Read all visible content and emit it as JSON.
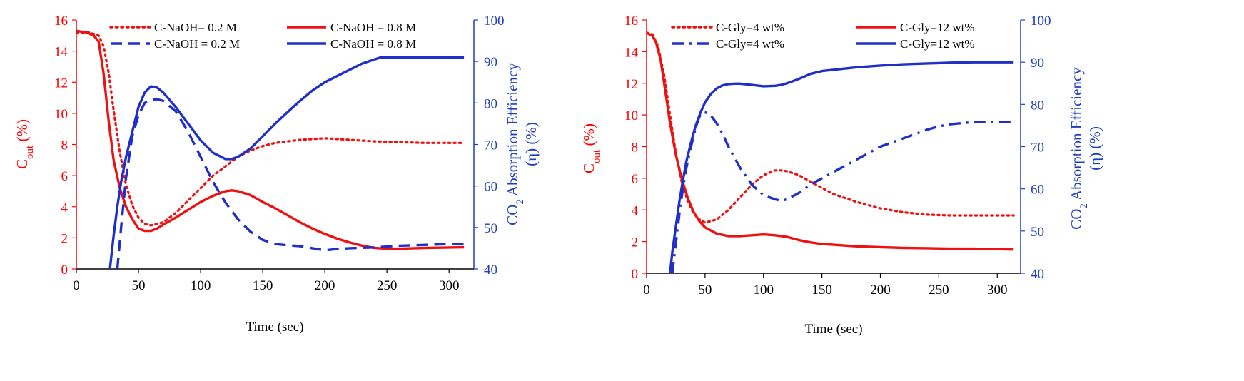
{
  "colors": {
    "left_axis": "#ff0000",
    "right_axis": "#1f3fbf",
    "red_series": "#ee1111",
    "blue_series": "#1f2fc8"
  },
  "chart_data": [
    {
      "type": "line",
      "xlabel": "Time  (sec)",
      "ylabel_left": {
        "main": "C",
        "sub": "out",
        "tail": "  (%)"
      },
      "ylabel_right": {
        "line1": {
          "pre": "CO",
          "sub": "2",
          "post": " Absorption  Efficiency"
        },
        "line2": "(η) (%)"
      },
      "xlim": [
        0,
        320
      ],
      "ylim_left": [
        0,
        16
      ],
      "ylim_right": [
        40,
        100
      ],
      "xticks": [
        "0",
        "50",
        "100",
        "150",
        "200",
        "250",
        "300"
      ],
      "yticks_left": [
        "0",
        "2",
        "4",
        "6",
        "8",
        "10",
        "12",
        "14",
        "16"
      ],
      "yticks_right": [
        "40",
        "50",
        "60",
        "70",
        "80",
        "90",
        "100"
      ],
      "series": [
        {
          "name": "C-NaOH= 0.2 M",
          "axis": "left",
          "color": "red",
          "dash": "dotted",
          "x": [
            0,
            10,
            18,
            22,
            26,
            30,
            35,
            40,
            45,
            50,
            55,
            60,
            70,
            80,
            90,
            100,
            110,
            120,
            130,
            140,
            150,
            160,
            180,
            200,
            220,
            240,
            260,
            280,
            300,
            312
          ],
          "y": [
            15.2,
            15.2,
            15.0,
            14.3,
            12.6,
            10.2,
            7.5,
            5.4,
            4.1,
            3.3,
            2.9,
            2.8,
            3.0,
            3.6,
            4.4,
            5.2,
            6.0,
            6.6,
            7.2,
            7.6,
            7.9,
            8.1,
            8.3,
            8.4,
            8.3,
            8.2,
            8.15,
            8.1,
            8.1,
            8.1
          ]
        },
        {
          "name": "C-NaOH = 0.8 M",
          "axis": "left",
          "color": "red",
          "dash": "solid",
          "x": [
            0,
            8,
            14,
            18,
            22,
            26,
            30,
            35,
            40,
            45,
            50,
            55,
            60,
            65,
            70,
            80,
            90,
            100,
            110,
            120,
            125,
            130,
            140,
            150,
            160,
            170,
            180,
            190,
            200,
            210,
            220,
            230,
            240,
            250,
            260,
            280,
            300,
            312
          ],
          "y": [
            15.3,
            15.2,
            15.0,
            14.6,
            12.5,
            9.5,
            7.0,
            5.2,
            4.0,
            3.2,
            2.6,
            2.45,
            2.45,
            2.6,
            2.85,
            3.3,
            3.8,
            4.3,
            4.7,
            5.0,
            5.05,
            5.0,
            4.75,
            4.3,
            3.9,
            3.45,
            3.0,
            2.6,
            2.25,
            1.95,
            1.7,
            1.5,
            1.35,
            1.3,
            1.3,
            1.35,
            1.38,
            1.4
          ]
        },
        {
          "name": "C-NaOH = 0.2 M",
          "axis": "right",
          "color": "blue",
          "dash": "dashed",
          "x": [
            33,
            36,
            40,
            45,
            50,
            55,
            60,
            65,
            70,
            80,
            90,
            100,
            110,
            120,
            130,
            140,
            150,
            160,
            170,
            180,
            190,
            200,
            210,
            220,
            240,
            260,
            280,
            300,
            312
          ],
          "y": [
            40,
            50,
            62,
            72,
            77,
            80,
            80.7,
            80.9,
            80.5,
            78,
            73,
            67,
            61,
            56,
            52,
            49,
            47,
            46,
            45.7,
            45.5,
            45,
            44.5,
            44.8,
            45,
            45.2,
            45.6,
            45.8,
            46,
            46
          ]
        },
        {
          "name": "C-NaOH = 0.8 M",
          "axis": "right",
          "color": "blue",
          "dash": "solid",
          "x": [
            27,
            30,
            33,
            36,
            40,
            45,
            50,
            55,
            60,
            65,
            70,
            80,
            90,
            100,
            110,
            120,
            125,
            130,
            140,
            150,
            160,
            170,
            180,
            190,
            200,
            210,
            220,
            230,
            240,
            245,
            250,
            260,
            280,
            300,
            312
          ],
          "y": [
            40,
            48,
            55,
            61,
            67,
            73,
            79,
            82.5,
            84,
            83.7,
            82.5,
            79,
            75,
            71,
            68,
            66.5,
            66.5,
            67,
            69,
            72,
            75,
            77.8,
            80.5,
            83,
            85,
            86.5,
            88,
            89.5,
            90.5,
            91,
            91,
            91,
            91,
            91,
            91
          ]
        }
      ],
      "legend": [
        {
          "label": "C-NaOH= 0.2 M",
          "color": "red",
          "dash": "dotted"
        },
        {
          "label": "C-NaOH = 0.8 M",
          "color": "red",
          "dash": "solid"
        },
        {
          "label": "C-NaOH = 0.2 M",
          "color": "blue",
          "dash": "dashed"
        },
        {
          "label": "C-NaOH = 0.8 M",
          "color": "blue",
          "dash": "solid"
        }
      ]
    },
    {
      "type": "line",
      "xlabel": "Time (sec)",
      "ylabel_left": {
        "main": "C",
        "sub": "out",
        "tail": "  (%)"
      },
      "ylabel_right": {
        "line1": {
          "pre": "CO",
          "sub": "2",
          "post": " Absorption Efficiency"
        },
        "line2": "(η) (%)"
      },
      "xlim": [
        0,
        320
      ],
      "ylim_left": [
        0,
        16
      ],
      "ylim_right": [
        40,
        100
      ],
      "xticks": [
        "0",
        "50",
        "100",
        "150",
        "200",
        "250",
        "300"
      ],
      "yticks_left": [
        "0",
        "2",
        "4",
        "6",
        "8",
        "10",
        "12",
        "14",
        "16"
      ],
      "yticks_right": [
        "40",
        "50",
        "60",
        "70",
        "80",
        "90",
        "100"
      ],
      "series": [
        {
          "name": "C-Gly=4 wt%",
          "axis": "left",
          "color": "red",
          "dash": "dotted",
          "x": [
            0,
            5,
            10,
            15,
            20,
            25,
            30,
            35,
            40,
            45,
            50,
            60,
            70,
            80,
            90,
            100,
            110,
            115,
            120,
            130,
            140,
            150,
            160,
            180,
            200,
            220,
            240,
            260,
            280,
            300,
            314
          ],
          "y": [
            15.2,
            15.1,
            14.3,
            12.5,
            10.0,
            7.6,
            5.8,
            4.6,
            3.8,
            3.4,
            3.2,
            3.4,
            4.0,
            4.8,
            5.6,
            6.2,
            6.5,
            6.5,
            6.45,
            6.2,
            5.8,
            5.4,
            5.0,
            4.5,
            4.1,
            3.85,
            3.7,
            3.65,
            3.65,
            3.65,
            3.65
          ]
        },
        {
          "name": "C-Gly=12 wt%",
          "axis": "left",
          "color": "red",
          "dash": "solid",
          "x": [
            0,
            5,
            8,
            12,
            16,
            20,
            25,
            30,
            35,
            40,
            45,
            50,
            60,
            70,
            80,
            90,
            100,
            110,
            120,
            130,
            140,
            150,
            160,
            180,
            200,
            220,
            240,
            260,
            280,
            300,
            314
          ],
          "y": [
            15.2,
            15.0,
            14.6,
            13.5,
            11.5,
            9.5,
            7.5,
            6.0,
            4.8,
            3.9,
            3.3,
            2.9,
            2.5,
            2.35,
            2.35,
            2.4,
            2.45,
            2.4,
            2.3,
            2.1,
            1.95,
            1.85,
            1.8,
            1.7,
            1.65,
            1.6,
            1.58,
            1.55,
            1.55,
            1.52,
            1.5
          ]
        },
        {
          "name": "C-Gly=4 wt%",
          "axis": "right",
          "color": "blue",
          "dash": "dashdot",
          "x": [
            22,
            25,
            28,
            31,
            34,
            38,
            42,
            45,
            48,
            52,
            56,
            60,
            65,
            70,
            80,
            90,
            100,
            105,
            110,
            115,
            120,
            130,
            140,
            150,
            160,
            180,
            200,
            220,
            240,
            250,
            260,
            270,
            280,
            300,
            314
          ],
          "y": [
            40,
            47,
            54,
            60,
            65,
            70,
            74.5,
            77,
            78.2,
            78,
            77,
            75.5,
            73,
            70,
            65,
            61,
            58.5,
            58,
            57.5,
            57.2,
            57.5,
            59,
            61,
            62.5,
            64,
            67,
            70,
            72,
            74,
            74.8,
            75.3,
            75.6,
            75.8,
            75.8,
            75.8
          ]
        },
        {
          "name": "C-Gly=12 wt%",
          "axis": "right",
          "color": "blue",
          "dash": "solid",
          "x": [
            20,
            22,
            25,
            28,
            31,
            34,
            38,
            42,
            46,
            50,
            55,
            60,
            65,
            70,
            75,
            80,
            90,
            100,
            110,
            115,
            120,
            130,
            140,
            150,
            160,
            180,
            200,
            220,
            240,
            250,
            260,
            280,
            300,
            314
          ],
          "y": [
            40,
            45,
            51,
            57,
            62,
            66.5,
            71,
            75,
            78,
            80.5,
            82.5,
            83.8,
            84.5,
            84.8,
            84.9,
            84.9,
            84.6,
            84.3,
            84.4,
            84.6,
            85,
            86,
            87.2,
            87.9,
            88.2,
            88.8,
            89.2,
            89.5,
            89.7,
            89.8,
            89.9,
            90,
            90,
            90
          ]
        }
      ],
      "legend": [
        {
          "label": "C-Gly=4 wt%",
          "color": "red",
          "dash": "dotted"
        },
        {
          "label": "C-Gly=12 wt%",
          "color": "red",
          "dash": "solid"
        },
        {
          "label": "C-Gly=4 wt%",
          "color": "blue",
          "dash": "dashdot"
        },
        {
          "label": "C-Gly=12 wt%",
          "color": "blue",
          "dash": "solid"
        }
      ]
    }
  ]
}
